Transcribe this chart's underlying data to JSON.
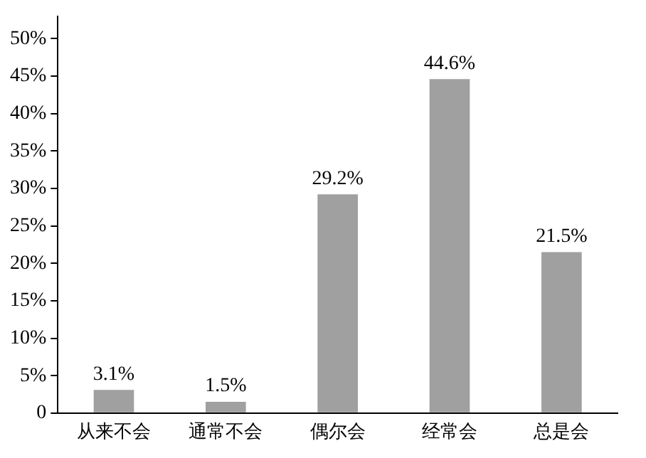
{
  "chart_data": {
    "type": "bar",
    "categories": [
      "从来不会",
      "通常不会",
      "偶尔会",
      "经常会",
      "总是会"
    ],
    "values": [
      3.1,
      1.5,
      29.2,
      44.6,
      21.5
    ],
    "value_labels": [
      "3.1%",
      "1.5%",
      "29.2%",
      "44.6%",
      "21.5%"
    ],
    "color": "#a0a0a0",
    "ylim": [
      0,
      53
    ],
    "yticks": [
      0,
      {
        "value": 5,
        "label": "5%"
      },
      {
        "value": 10,
        "label": "10%"
      },
      {
        "value": 15,
        "label": "15%"
      },
      {
        "value": 20,
        "label": "20%"
      },
      {
        "value": 25,
        "label": "25%"
      },
      {
        "value": 30,
        "label": "30%"
      },
      {
        "value": 35,
        "label": "35%"
      },
      {
        "value": 40,
        "label": "40%"
      },
      {
        "value": 45,
        "label": "45%"
      },
      {
        "value": 50,
        "label": "50%"
      }
    ],
    "grid": false,
    "legend": false
  }
}
